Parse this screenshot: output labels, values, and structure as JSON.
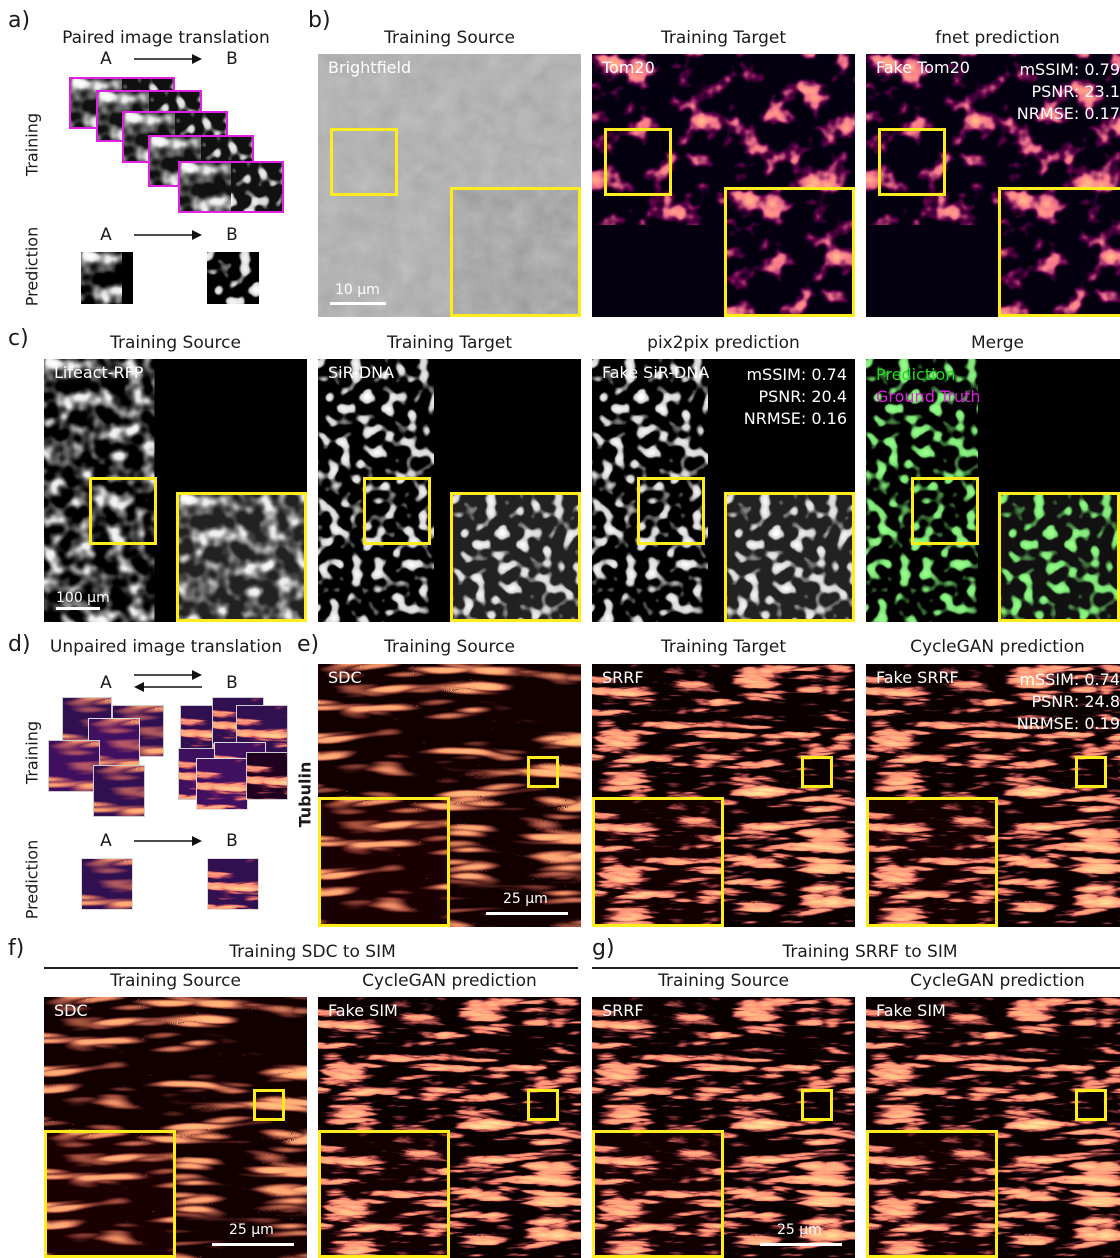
{
  "panel_labels": {
    "a": "a)",
    "b": "b)",
    "c": "c)",
    "d": "d)",
    "e": "e)",
    "f": "f)",
    "g": "g)"
  },
  "panel_a": {
    "title": "Paired image translation",
    "training": "Training",
    "prediction": "Prediction",
    "A": "A",
    "B": "B"
  },
  "panel_d": {
    "title": "Unpaired image translation",
    "training": "Training",
    "prediction": "Prediction",
    "A": "A",
    "B": "B"
  },
  "panel_b": {
    "titles": [
      "Training Source",
      "Training Target",
      "fnet prediction"
    ],
    "tags": [
      "Brightfield",
      "Tom20",
      "Fake Tom20"
    ],
    "metrics": [
      "mSSIM: 0.79",
      "PSNR: 23.1",
      "NRMSE: 0.17"
    ],
    "scale": "10 µm"
  },
  "panel_c": {
    "titles": [
      "Training Source",
      "Training Target",
      "pix2pix prediction",
      "Merge"
    ],
    "tags": [
      "Lifeact-RFP",
      "SiR-DNA",
      "Fake SiR-DNA"
    ],
    "metrics": [
      "mSSIM: 0.74",
      "PSNR: 20.4",
      "NRMSE: 0.16"
    ],
    "merge_legend": [
      "Prediction",
      "Ground Truth"
    ],
    "scale": "100 µm",
    "colors": {
      "prediction": "#22dd22",
      "ground_truth": "#dd22dd"
    }
  },
  "panel_e": {
    "titles": [
      "Training Source",
      "Training Target",
      "CycleGAN prediction"
    ],
    "tags": [
      "SDC",
      "SRRF",
      "Fake SRRF"
    ],
    "metrics": [
      "mSSIM: 0.74",
      "PSNR: 24.8",
      "NRMSE: 0.19"
    ],
    "side_label": "Tubulin",
    "scale": "25 µm"
  },
  "panel_f": {
    "header": "Training SDC to SIM",
    "titles": [
      "Training Source",
      "CycleGAN prediction"
    ],
    "tags": [
      "SDC",
      "Fake SIM"
    ],
    "scale": "25 µm"
  },
  "panel_g": {
    "header": "Training SRRF to SIM",
    "titles": [
      "Training Source",
      "CycleGAN prediction"
    ],
    "tags": [
      "SRRF",
      "Fake SIM"
    ],
    "scale": "25 µm"
  },
  "colors": {
    "box": "#ffec1c",
    "tile_border": "#e020e0"
  }
}
